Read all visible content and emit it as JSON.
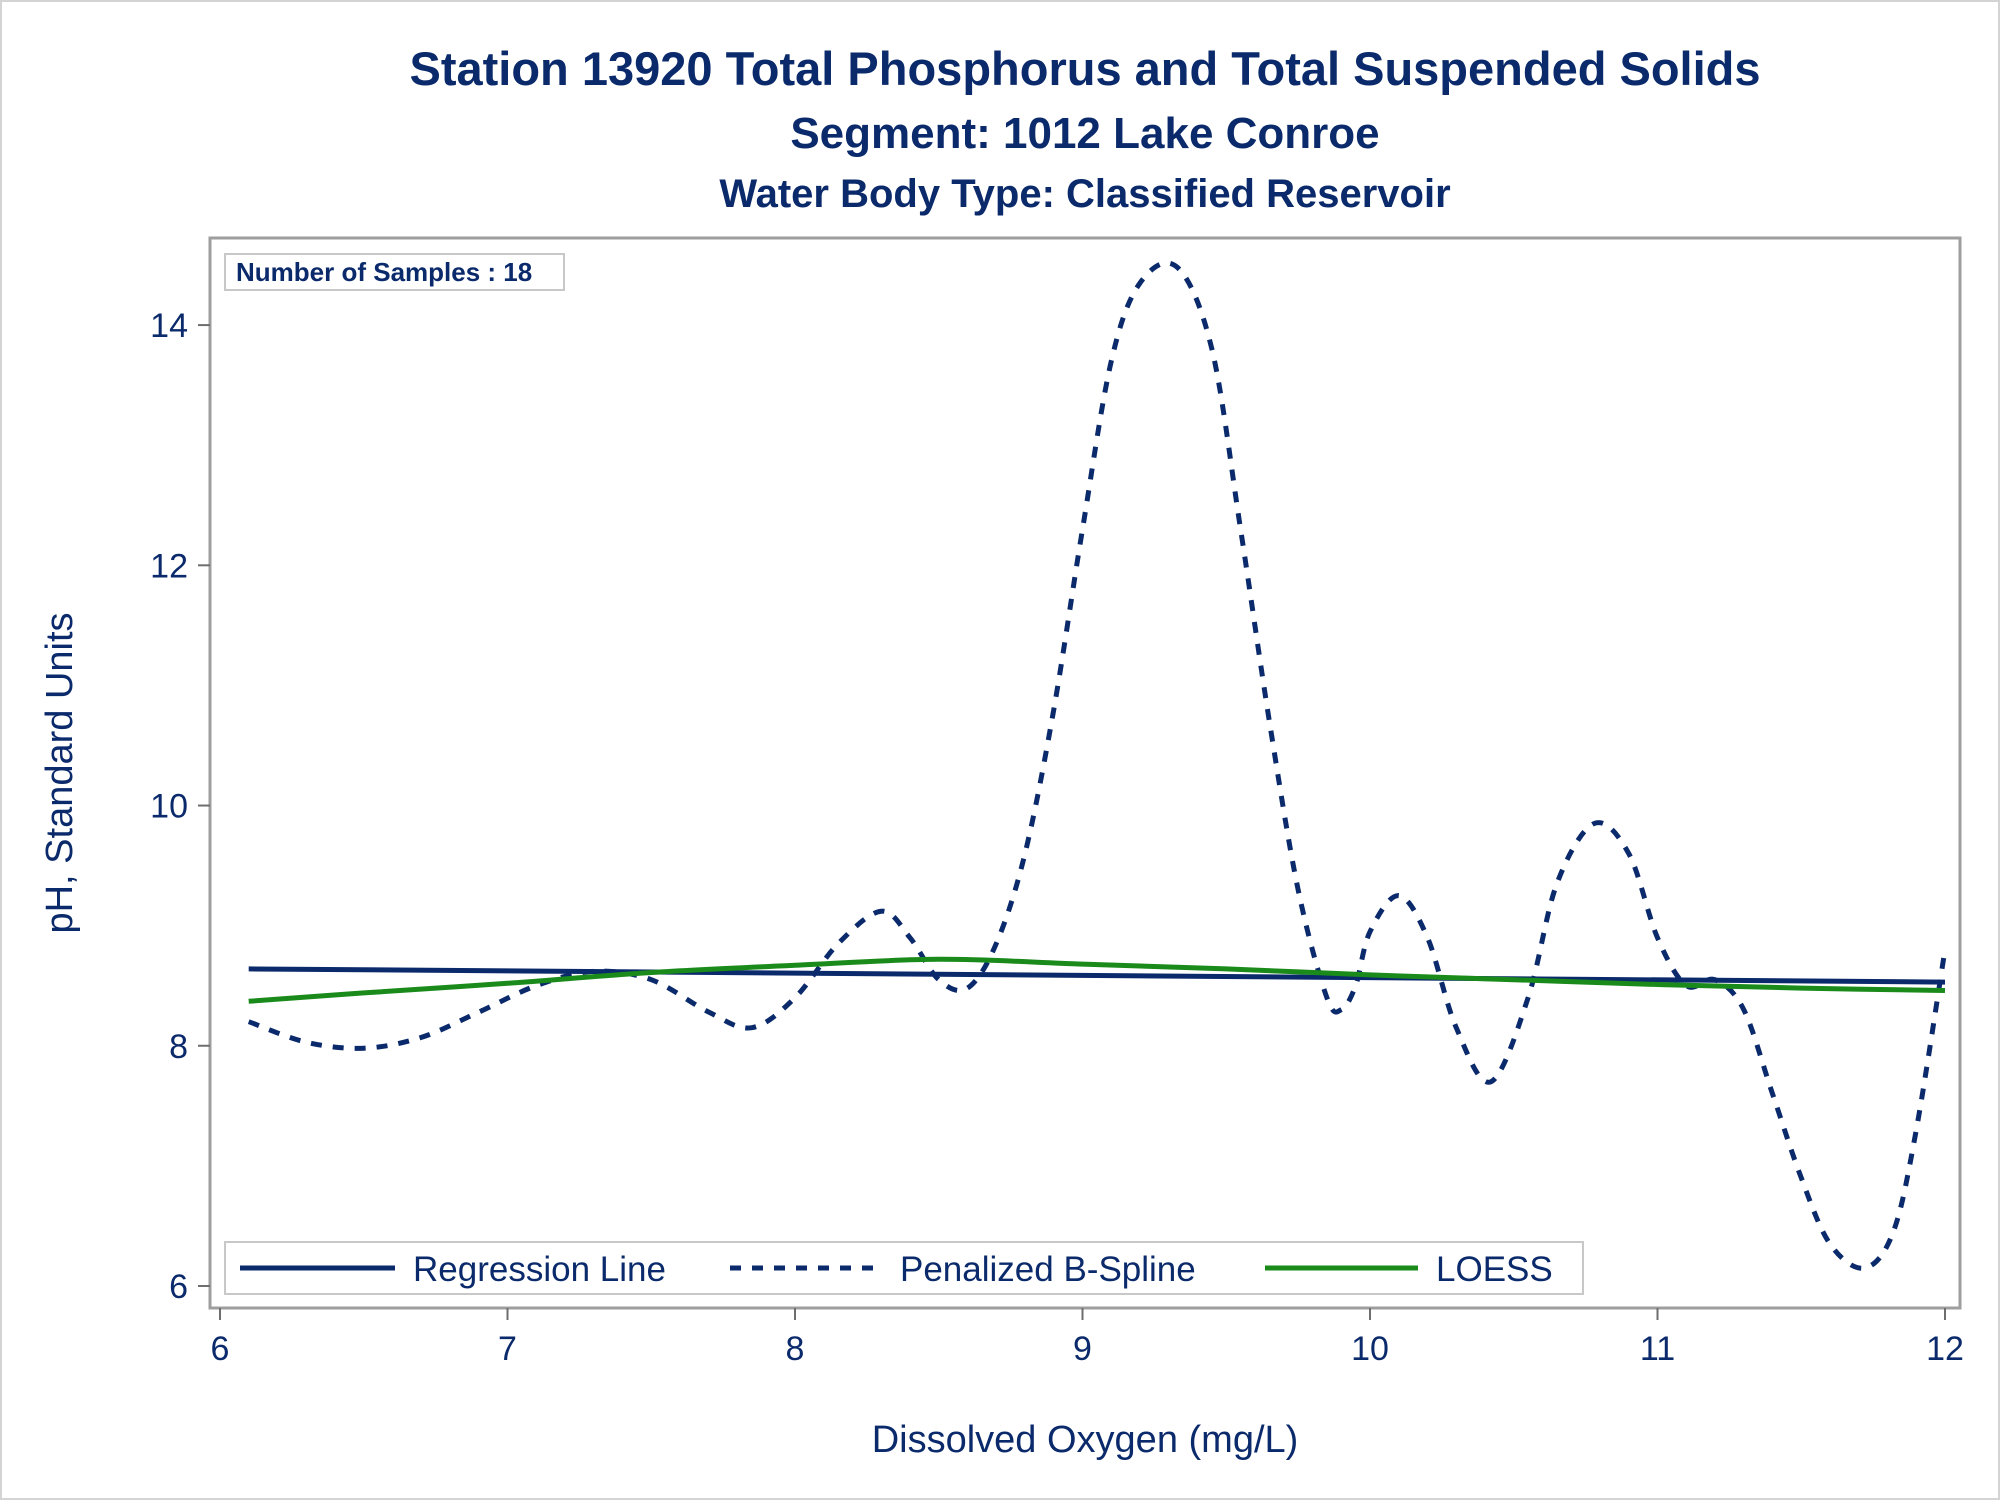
{
  "chart_data": {
    "type": "line",
    "title": "Station 13920  Total Phosphorus and Total Suspended Solids",
    "subtitle": "Segment: 1012  Lake Conroe",
    "subtitle2": "Water Body Type: Classified Reservoir",
    "xlabel": "Dissolved Oxygen (mg/L)",
    "ylabel": "pH, Standard Units",
    "xlim": [
      6,
      12
    ],
    "ylim": [
      5.9,
      14.65
    ],
    "x_ticks": [
      6,
      7,
      8,
      9,
      10,
      11,
      12
    ],
    "y_ticks": [
      6,
      8,
      10,
      12,
      14
    ],
    "inset_label": "Number of Samples : 18",
    "legend_position": "bottom-inside",
    "colors": {
      "text": "#0b2a6b",
      "regression": "#0b2a6b",
      "spline": "#0b2a6b",
      "loess": "#1a8a1a",
      "frame": "#9e9e9e"
    },
    "series": [
      {
        "name": "Regression Line",
        "style": "solid",
        "x": [
          6.1,
          12.0
        ],
        "y": [
          8.64,
          8.53
        ]
      },
      {
        "name": "Penalized B-Spline",
        "style": "dashed",
        "x": [
          6.1,
          6.3,
          6.5,
          6.7,
          6.9,
          7.1,
          7.3,
          7.5,
          7.7,
          7.85,
          8.0,
          8.15,
          8.3,
          8.4,
          8.5,
          8.6,
          8.7,
          8.8,
          8.9,
          9.0,
          9.1,
          9.2,
          9.33,
          9.45,
          9.55,
          9.65,
          9.75,
          9.85,
          9.9,
          9.95,
          10.0,
          10.1,
          10.2,
          10.3,
          10.42,
          10.55,
          10.65,
          10.78,
          10.9,
          11.0,
          11.1,
          11.2,
          11.3,
          11.4,
          11.5,
          11.6,
          11.72,
          11.82,
          11.9,
          12.0
        ],
        "y": [
          8.2,
          8.03,
          7.98,
          8.07,
          8.28,
          8.5,
          8.62,
          8.55,
          8.28,
          8.15,
          8.4,
          8.85,
          9.12,
          8.9,
          8.55,
          8.48,
          8.85,
          9.6,
          10.8,
          12.3,
          13.7,
          14.35,
          14.48,
          13.8,
          12.3,
          10.7,
          9.3,
          8.4,
          8.3,
          8.5,
          8.95,
          9.25,
          8.9,
          8.15,
          7.7,
          8.4,
          9.35,
          9.85,
          9.6,
          8.9,
          8.5,
          8.55,
          8.3,
          7.6,
          6.9,
          6.35,
          6.15,
          6.45,
          7.3,
          8.8
        ]
      },
      {
        "name": "LOESS",
        "style": "solid",
        "x": [
          6.1,
          6.5,
          7.0,
          7.5,
          8.0,
          8.5,
          9.0,
          9.5,
          10.0,
          10.5,
          11.0,
          11.5,
          12.0
        ],
        "y": [
          8.37,
          8.44,
          8.52,
          8.61,
          8.67,
          8.72,
          8.68,
          8.64,
          8.59,
          8.55,
          8.51,
          8.48,
          8.46
        ]
      }
    ]
  }
}
